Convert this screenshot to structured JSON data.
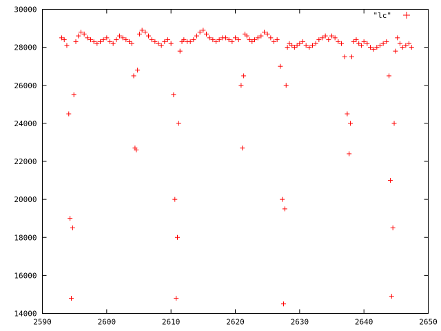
{
  "chart_data": {
    "type": "scatter",
    "title": "",
    "xlabel": "",
    "ylabel": "",
    "xlim": [
      2590,
      2650
    ],
    "ylim": [
      14000,
      30000
    ],
    "x_ticks": [
      2590,
      2600,
      2610,
      2620,
      2630,
      2640,
      2650
    ],
    "y_ticks": [
      14000,
      16000,
      18000,
      20000,
      22000,
      24000,
      26000,
      28000,
      30000
    ],
    "x_tick_labels": [
      "2590",
      "2600",
      "2610",
      "2620",
      "2630",
      "2640",
      "2650"
    ],
    "y_tick_labels": [
      "14000",
      "16000",
      "18000",
      "20000",
      "22000",
      "24000",
      "26000",
      "28000",
      "30000"
    ],
    "grid": false,
    "legend_position": "top-right",
    "marker": "plus",
    "series": [
      {
        "name": "\"lc\"",
        "color": "#ff0000",
        "x": [
          2593.0,
          2593.4,
          2593.8,
          2594.1,
          2594.3,
          2594.5,
          2594.7,
          2594.9,
          2595.2,
          2595.6,
          2596.0,
          2596.5,
          2597.0,
          2597.5,
          2598.0,
          2598.5,
          2599.0,
          2599.5,
          2600.0,
          2600.5,
          2601.0,
          2601.5,
          2602.0,
          2602.5,
          2603.0,
          2603.5,
          2603.9,
          2604.2,
          2604.4,
          2604.6,
          2604.8,
          2605.1,
          2605.5,
          2606.0,
          2606.5,
          2607.0,
          2607.5,
          2608.0,
          2608.5,
          2609.0,
          2609.5,
          2610.0,
          2610.4,
          2610.6,
          2610.8,
          2611.0,
          2611.2,
          2611.4,
          2611.7,
          2612.0,
          2612.5,
          2613.0,
          2613.5,
          2614.0,
          2614.5,
          2615.0,
          2615.5,
          2616.0,
          2616.5,
          2617.0,
          2617.5,
          2618.0,
          2618.5,
          2619.0,
          2619.5,
          2620.0,
          2620.5,
          2620.9,
          2621.1,
          2621.3,
          2621.5,
          2621.8,
          2622.2,
          2622.6,
          2623.0,
          2623.5,
          2624.0,
          2624.5,
          2625.0,
          2625.5,
          2626.0,
          2626.5,
          2627.0,
          2627.3,
          2627.5,
          2627.7,
          2627.9,
          2628.1,
          2628.4,
          2628.8,
          2629.2,
          2629.6,
          2630.0,
          2630.5,
          2631.0,
          2631.5,
          2632.0,
          2632.5,
          2633.0,
          2633.5,
          2634.0,
          2634.5,
          2635.0,
          2635.5,
          2636.0,
          2636.5,
          2637.0,
          2637.4,
          2637.7,
          2637.9,
          2638.1,
          2638.4,
          2638.8,
          2639.2,
          2639.6,
          2640.0,
          2640.5,
          2641.0,
          2641.5,
          2642.0,
          2642.5,
          2643.0,
          2643.5,
          2643.9,
          2644.1,
          2644.3,
          2644.5,
          2644.7,
          2644.9,
          2645.2,
          2645.6,
          2646.0,
          2646.5,
          2647.0,
          2647.4
        ],
        "y": [
          28500,
          28400,
          28100,
          24500,
          19000,
          14800,
          18500,
          25500,
          28300,
          28600,
          28800,
          28700,
          28500,
          28400,
          28300,
          28200,
          28300,
          28400,
          28500,
          28300,
          28200,
          28400,
          28600,
          28500,
          28400,
          28300,
          28200,
          26500,
          22700,
          22600,
          26800,
          28700,
          28900,
          28800,
          28600,
          28400,
          28300,
          28200,
          28100,
          28300,
          28400,
          28200,
          25500,
          20000,
          14800,
          18000,
          24000,
          27800,
          28300,
          28400,
          28300,
          28300,
          28400,
          28600,
          28800,
          28900,
          28700,
          28500,
          28400,
          28300,
          28400,
          28500,
          28500,
          28400,
          28300,
          28500,
          28400,
          26000,
          22700,
          26500,
          28700,
          28600,
          28400,
          28300,
          28400,
          28500,
          28600,
          28800,
          28700,
          28500,
          28300,
          28400,
          27000,
          20000,
          14500,
          19500,
          26000,
          28000,
          28200,
          28100,
          28000,
          28100,
          28200,
          28300,
          28100,
          28000,
          28100,
          28200,
          28400,
          28500,
          28600,
          28400,
          28600,
          28500,
          28300,
          28200,
          27500,
          24500,
          22400,
          24000,
          27500,
          28300,
          28400,
          28200,
          28100,
          28300,
          28200,
          28000,
          27900,
          28000,
          28100,
          28200,
          28300,
          26500,
          21000,
          14900,
          18500,
          24000,
          27800,
          28500,
          28200,
          28000,
          28100,
          28200,
          28000
        ]
      }
    ]
  }
}
